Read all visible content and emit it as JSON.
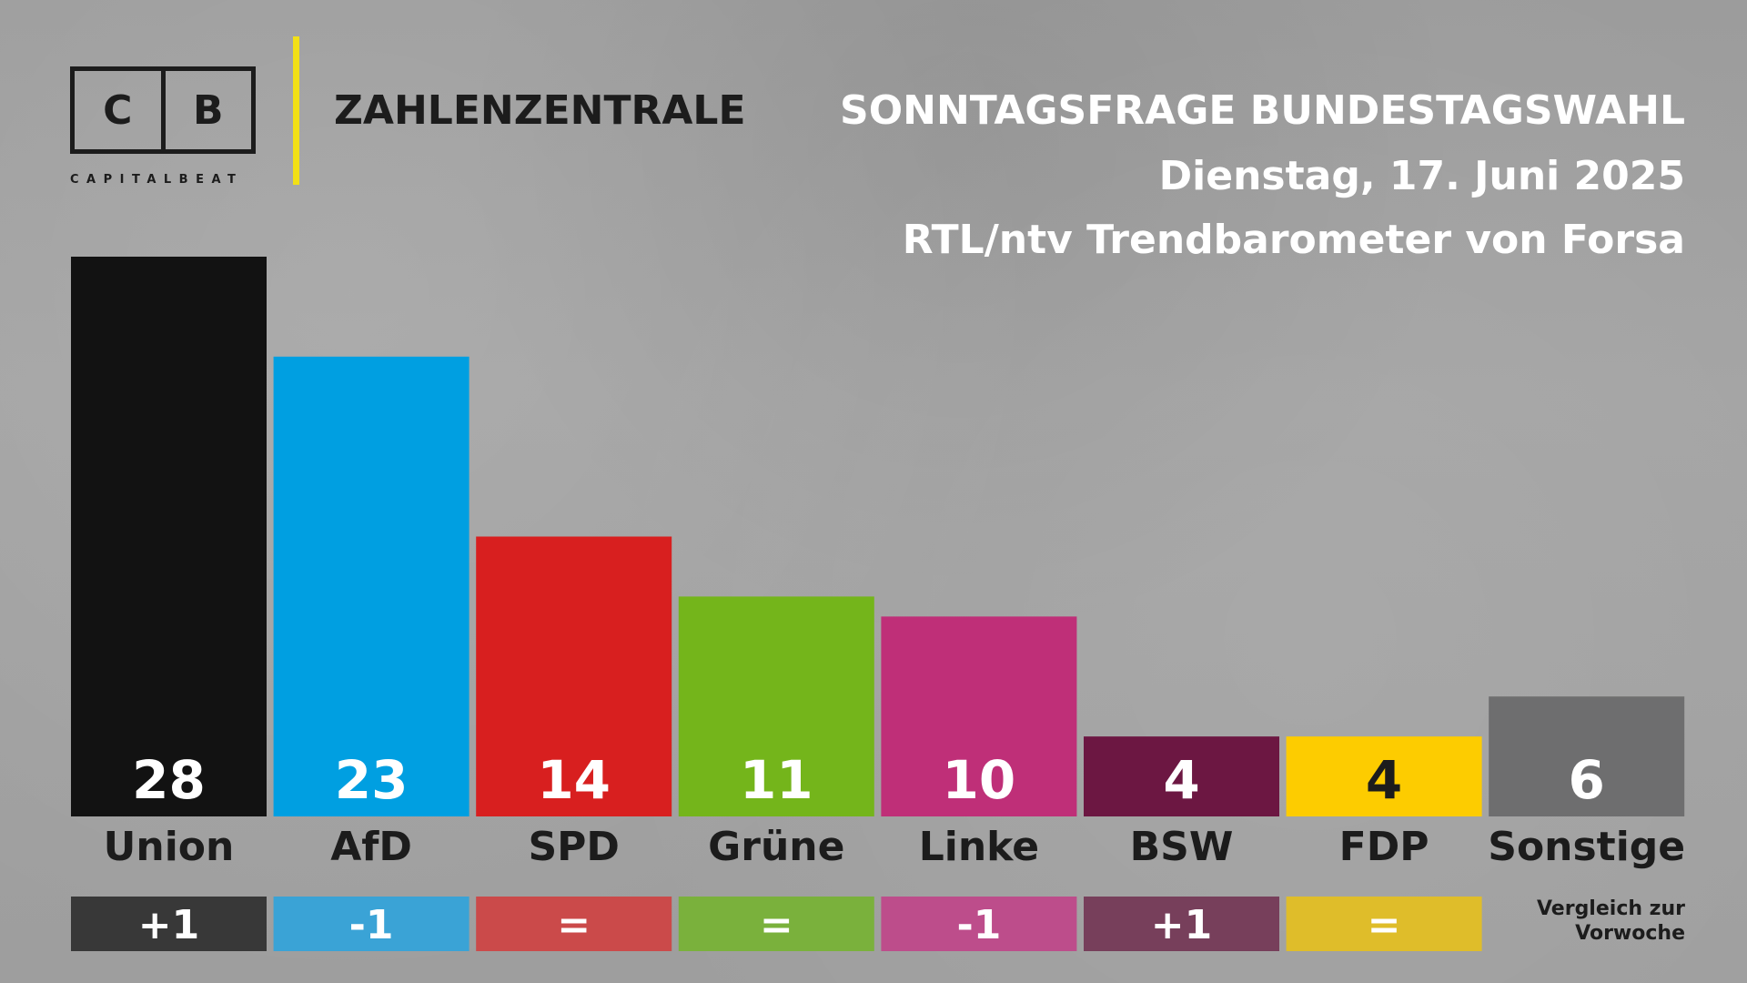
{
  "header": {
    "logo_left": "C",
    "logo_right": "B",
    "logo_subtitle": "CAPITALBEAT",
    "brand": "ZAHLENZENTRALE"
  },
  "colors": {
    "divider": "#f2e016",
    "label_text": "#1c1c1c",
    "value_text_light": "#ffffff",
    "value_text_dark": "#1c1c1c"
  },
  "chart_data": {
    "type": "bar",
    "title": "SONNTAGSFRAGE BUNDESTAGSWAHL",
    "subtitle": "Dienstag, 17. Juni 2025",
    "source": "RTL/ntv Trendbarometer von Forsa",
    "categories": [
      "Union",
      "AfD",
      "SPD",
      "Grüne",
      "Linke",
      "BSW",
      "FDP",
      "Sonstige"
    ],
    "values": [
      28,
      23,
      14,
      11,
      10,
      4,
      4,
      6
    ],
    "value_labels": [
      "28",
      "23",
      "14",
      "11",
      "10",
      "4",
      "4",
      "6"
    ],
    "change_labels": [
      "+1",
      "-1",
      "=",
      "=",
      "-1",
      "+1",
      "=",
      ""
    ],
    "change_note": "Vergleich zur Vorwoche",
    "colors": [
      "#121212",
      "#009fe1",
      "#d81f1f",
      "#74b51b",
      "#bf2f78",
      "#6c1742",
      "#fdcc00",
      "#6e6e6f"
    ],
    "change_colors": [
      "#383838",
      "#3aa3d6",
      "#cb4a4a",
      "#7ab13c",
      "#bd4d8b",
      "#773f5b",
      "#dfbd2a",
      ""
    ],
    "value_text_colors": [
      "#ffffff",
      "#ffffff",
      "#ffffff",
      "#ffffff",
      "#ffffff",
      "#ffffff",
      "#1c1c1c",
      "#ffffff"
    ],
    "ylim": [
      0,
      28
    ],
    "grid": false,
    "xlabel": "",
    "ylabel": ""
  }
}
